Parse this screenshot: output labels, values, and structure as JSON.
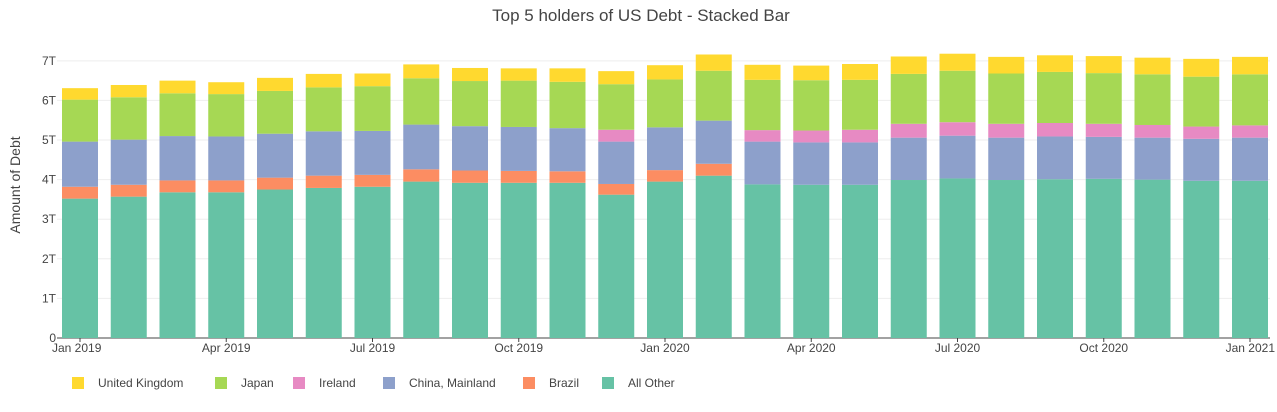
{
  "chart_data": {
    "type": "bar",
    "stacked": true,
    "title": "Top 5 holders of US Debt - Stacked Bar",
    "xlabel": "",
    "ylabel": "Amount of Debt",
    "ylim": [
      0,
      7.4
    ],
    "y_unit_suffix": "T",
    "y_ticks": [
      0,
      1,
      2,
      3,
      4,
      5,
      6,
      7
    ],
    "y_tick_labels": [
      "0",
      "1T",
      "2T",
      "3T",
      "4T",
      "5T",
      "6T",
      "7T"
    ],
    "grid": true,
    "legend_position": "bottom",
    "categories": [
      "2019-01",
      "2019-02",
      "2019-03",
      "2019-04",
      "2019-05",
      "2019-06",
      "2019-07",
      "2019-08",
      "2019-09",
      "2019-10",
      "2019-11",
      "2019-12",
      "2020-01",
      "2020-02",
      "2020-03",
      "2020-04",
      "2020-05",
      "2020-06",
      "2020-07",
      "2020-08",
      "2020-09",
      "2020-10",
      "2020-11",
      "2020-12",
      "2021-01"
    ],
    "x_tick_labels": [
      {
        "category": "2019-01",
        "label": "Jan 2019"
      },
      {
        "category": "2019-04",
        "label": "Apr 2019"
      },
      {
        "category": "2019-07",
        "label": "Jul 2019"
      },
      {
        "category": "2019-10",
        "label": "Oct 2019"
      },
      {
        "category": "2020-01",
        "label": "Jan 2020"
      },
      {
        "category": "2020-04",
        "label": "Apr 2020"
      },
      {
        "category": "2020-07",
        "label": "Jul 2020"
      },
      {
        "category": "2020-10",
        "label": "Oct 2020"
      },
      {
        "category": "2021-01",
        "label": "Jan 2021"
      }
    ],
    "series": [
      {
        "name": "All Other",
        "color": "#66c2a5",
        "values": [
          3.52,
          3.57,
          3.68,
          3.68,
          3.75,
          3.79,
          3.82,
          3.95,
          3.92,
          3.92,
          3.92,
          3.62,
          3.95,
          4.1,
          3.88,
          3.87,
          3.87,
          3.99,
          4.03,
          3.99,
          4.01,
          4.02,
          4.0,
          3.97,
          3.97
        ]
      },
      {
        "name": "Brazil",
        "color": "#fc8d62",
        "values": [
          0.3,
          0.3,
          0.3,
          0.3,
          0.3,
          0.31,
          0.3,
          0.31,
          0.31,
          0.3,
          0.29,
          0.27,
          0.29,
          0.3,
          0.0,
          0.0,
          0.0,
          0.0,
          0.0,
          0.0,
          0.0,
          0.0,
          0.0,
          0.0,
          0.0
        ]
      },
      {
        "name": "China, Mainland",
        "color": "#8da0cb",
        "values": [
          1.14,
          1.14,
          1.12,
          1.11,
          1.11,
          1.12,
          1.11,
          1.13,
          1.12,
          1.11,
          1.09,
          1.07,
          1.08,
          1.09,
          1.08,
          1.07,
          1.07,
          1.07,
          1.08,
          1.07,
          1.08,
          1.06,
          1.06,
          1.06,
          1.09
        ]
      },
      {
        "name": "Ireland",
        "color": "#e78ac3",
        "values": [
          0.0,
          0.0,
          0.0,
          0.0,
          0.0,
          0.0,
          0.0,
          0.0,
          0.0,
          0.0,
          0.0,
          0.3,
          0.0,
          0.0,
          0.29,
          0.3,
          0.32,
          0.35,
          0.34,
          0.35,
          0.34,
          0.33,
          0.32,
          0.31,
          0.31
        ]
      },
      {
        "name": "Japan",
        "color": "#a6d854",
        "values": [
          1.06,
          1.07,
          1.08,
          1.07,
          1.08,
          1.11,
          1.13,
          1.17,
          1.14,
          1.17,
          1.17,
          1.15,
          1.21,
          1.26,
          1.27,
          1.27,
          1.26,
          1.26,
          1.3,
          1.27,
          1.29,
          1.28,
          1.28,
          1.26,
          1.29
        ]
      },
      {
        "name": "United Kingdom",
        "color": "#ffd92f",
        "values": [
          0.29,
          0.31,
          0.32,
          0.3,
          0.33,
          0.34,
          0.32,
          0.35,
          0.33,
          0.31,
          0.34,
          0.33,
          0.36,
          0.41,
          0.38,
          0.37,
          0.4,
          0.44,
          0.43,
          0.42,
          0.42,
          0.43,
          0.42,
          0.45,
          0.44
        ]
      }
    ],
    "legend_order": [
      "United Kingdom",
      "Japan",
      "Ireland",
      "China, Mainland",
      "Brazil",
      "All Other"
    ]
  }
}
